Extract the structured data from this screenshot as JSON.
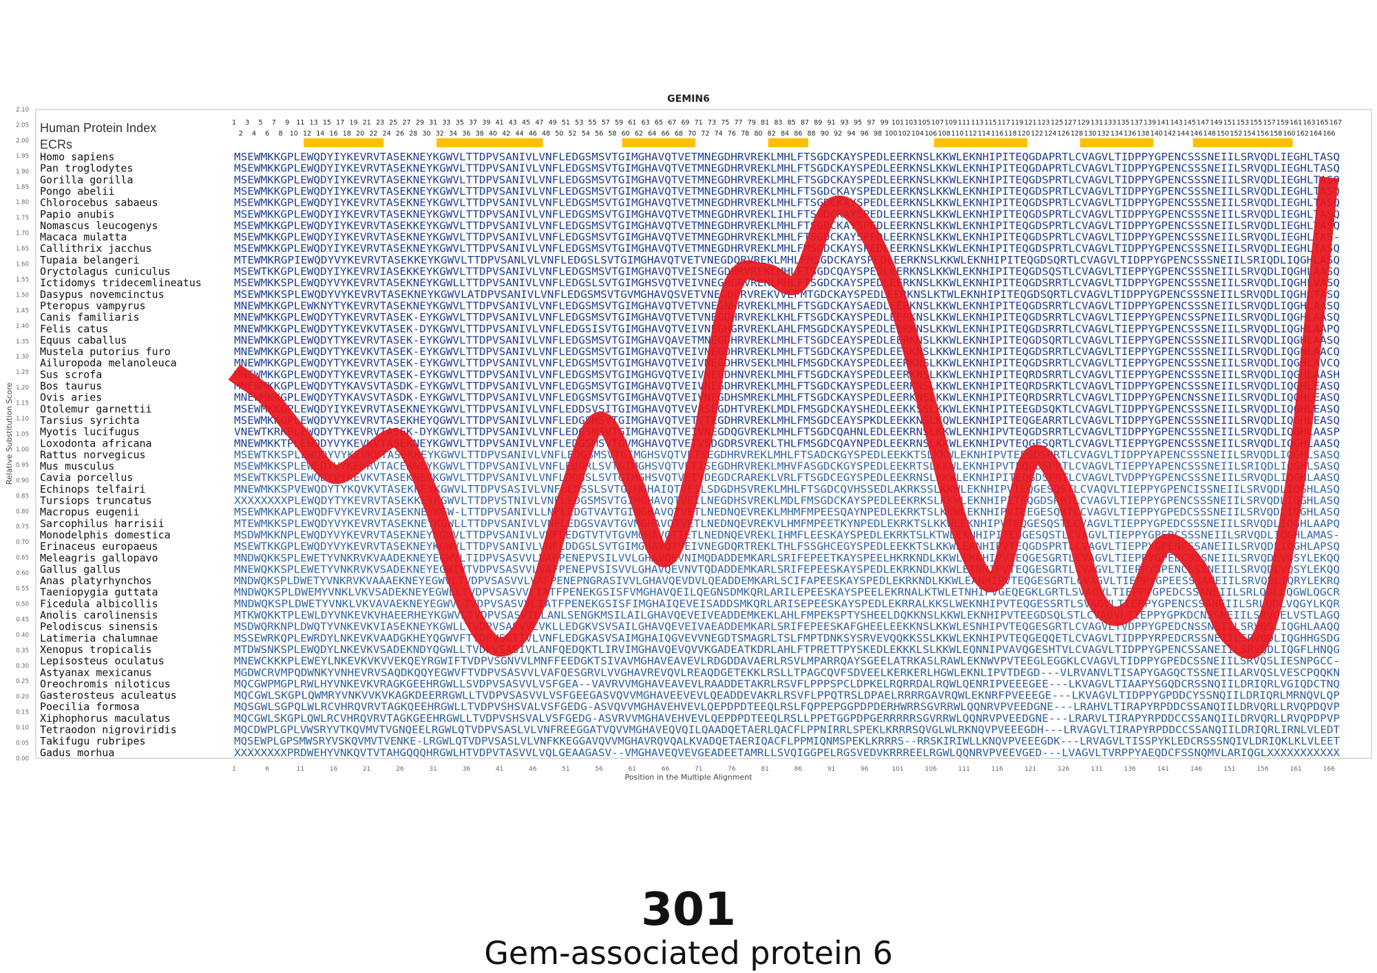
{
  "caption": {
    "number": "301",
    "protein_name": "Gem-associated protein 6"
  },
  "chart_data": {
    "type": "line",
    "title": "GEMIN6",
    "xlabel": "Position in the Multiple Alignment",
    "ylabel": "Relative Substitution Score",
    "ylim": [
      0,
      2.1
    ],
    "xlim": [
      1,
      167
    ],
    "grid": false,
    "y_ticks": [
      "0.00",
      "0.05",
      "0.10",
      "0.15",
      "0.20",
      "0.25",
      "0.30",
      "0.35",
      "0.40",
      "0.45",
      "0.50",
      "0.55",
      "0.60",
      "0.65",
      "0.70",
      "0.75",
      "0.80",
      "0.85",
      "0.90",
      "0.95",
      "1.00",
      "1.05",
      "1.10",
      "1.15",
      "1.20",
      "1.25",
      "1.30",
      "1.35",
      "1.40",
      "1.45",
      "1.50",
      "1.55",
      "1.60",
      "1.65",
      "1.70",
      "1.75",
      "1.80",
      "1.85",
      "1.90",
      "1.95",
      "2.00",
      "2.05",
      "2.10"
    ],
    "x_ticks": [
      1,
      6,
      11,
      16,
      21,
      26,
      31,
      36,
      41,
      46,
      51,
      56,
      61,
      66,
      71,
      76,
      81,
      86,
      91,
      96,
      101,
      106,
      111,
      116,
      121,
      126,
      131,
      136,
      141,
      146,
      151,
      156,
      161,
      166
    ],
    "index_label": "Human Protein Index",
    "ecr_label": "ECRs",
    "human_index_row1": [
      "1",
      "3",
      "5",
      "7",
      "9",
      "11",
      "13",
      "15",
      "17",
      "19",
      "21",
      "23",
      "25",
      "27",
      "29",
      "31",
      "33",
      "35",
      "37",
      "39",
      "41",
      "43",
      "45",
      "47",
      "49",
      "51",
      "53",
      "55",
      "57",
      "59",
      "61",
      "63",
      "65",
      "67",
      "69",
      "71",
      "73",
      "75",
      "77",
      "79",
      "81",
      "83",
      "85",
      "87",
      "89",
      "91",
      "93",
      "95",
      "97",
      "99",
      "101",
      "103",
      "105",
      "107",
      "109",
      "111",
      "113",
      "115",
      "117",
      "119",
      "121",
      "123",
      "125",
      "127",
      "129",
      "131",
      "133",
      "135",
      "137",
      "139",
      "141",
      "143",
      "145",
      "147",
      "149",
      "151",
      "153",
      "155",
      "157",
      "159",
      "161",
      "163",
      "165",
      "167"
    ],
    "human_index_row2": [
      "2",
      "4",
      "6",
      "8",
      "10",
      "12",
      "14",
      "16",
      "18",
      "20",
      "22",
      "24",
      "26",
      "28",
      "30",
      "32",
      "34",
      "36",
      "38",
      "40",
      "42",
      "44",
      "46",
      "48",
      "50",
      "52",
      "54",
      "56",
      "58",
      "60",
      "62",
      "64",
      "66",
      "68",
      "70",
      "72",
      "74",
      "76",
      "78",
      "80",
      "82",
      "84",
      "86",
      "88",
      "90",
      "92",
      "94",
      "96",
      "98",
      "100",
      "102",
      "104",
      "106",
      "108",
      "110",
      "112",
      "114",
      "116",
      "118",
      "120",
      "122",
      "124",
      "126",
      "128",
      "130",
      "132",
      "134",
      "136",
      "138",
      "140",
      "142",
      "144",
      "146",
      "148",
      "150",
      "152",
      "154",
      "156",
      "158",
      "160",
      "162",
      "164",
      "166"
    ],
    "ecrs": [
      [
        12,
        23
      ],
      [
        32,
        47
      ],
      [
        60,
        70
      ],
      [
        82,
        87
      ],
      [
        107,
        120
      ],
      [
        129,
        139
      ],
      [
        146,
        160
      ]
    ],
    "ecr_color": "#ffc000",
    "line_color": "#e8141b",
    "series": [
      {
        "x": [
          1,
          6,
          11,
          16,
          21,
          26,
          31,
          36,
          41,
          46,
          51,
          56,
          61,
          66,
          71,
          76,
          81,
          86,
          91,
          96,
          101,
          106,
          111,
          116,
          121,
          126,
          131,
          136,
          141,
          146,
          151,
          156,
          161,
          166
        ],
        "y": [
          1.25,
          1.17,
          1.04,
          0.92,
          0.98,
          1.03,
          0.82,
          0.5,
          0.36,
          0.48,
          0.83,
          1.09,
          0.9,
          0.65,
          0.98,
          1.52,
          1.57,
          1.54,
          1.78,
          1.72,
          1.48,
          1.1,
          0.71,
          0.58,
          0.97,
          0.86,
          0.51,
          0.48,
          0.69,
          0.62,
          0.4,
          0.4,
          0.91,
          1.88
        ]
      }
    ],
    "species": [
      "Homo sapiens",
      "Pan troglodytes",
      "Gorilla gorilla",
      "Pongo abelii",
      "Chlorocebus sabaeus",
      "Papio anubis",
      "Nomascus leucogenys",
      "Macaca mulatta",
      "Callithrix jacchus",
      "Tupaia belangeri",
      "Oryctolagus cuniculus",
      "Ictidomys tridecemlineatus",
      "Dasypus novemcinctus",
      "Pteropus vampyrus",
      "Canis familiaris",
      "Felis catus",
      "Equus caballus",
      "Mustela putorius furo",
      "Ailuropoda melanoleuca",
      "Sus scrofa",
      "Bos taurus",
      "Ovis aries",
      "Otolemur garnettii",
      "Tarsius syrichta",
      "Myotis lucifugus",
      "Loxodonta africana",
      "Rattus norvegicus",
      "Mus musculus",
      "Cavia porcellus",
      "Echinops telfairi",
      "Tursiops truncatus",
      "Macropus eugenii",
      "Sarcophilus harrisii",
      "Monodelphis domestica",
      "Erinaceus europaeus",
      "Meleagris gallopavo",
      "Gallus gallus",
      "Anas platyrhynchos",
      "Taeniopygia guttata",
      "Ficedula albicollis",
      "Anolis carolinensis",
      "Pelodiscus sinensis",
      "Latimeria chalumnae",
      "Xenopus tropicalis",
      "Lepisosteus oculatus",
      "Astyanax mexicanus",
      "Oreochromis niloticus",
      "Gasterosteus aculeatus",
      "Poecilia formosa",
      "Xiphophorus maculatus",
      "Tetraodon nigroviridis",
      "Takifugu rubripes",
      "Gadus morhua"
    ],
    "sequences": [
      "MSEWMKKGPLEWQDYIYKEVRVTASEKNEYKGWVLTTDPVSANIVLVNFLEDGSMSVTGIMGHAVQTVETMNEGDHRVREKLMHLFTSGDCKAYSPEDLEERKNSLKKWLEKNHIPITEQGDAPRTLCVAGVLTIDPPYGPENCSSSNEIILSRVQDLIEGHLTASQ",
      "MSEWMKKGPLEWQDYIYKEVRVTASEKNEYKGWVLTTDPVSANIVLVNFLEDGSMSVTGIMGHAVQTVETMNEGDHRVREKLMHLFTSGDCKAYSPEDLEERKNSLKKWLEKNHIPITEQGDAPRTLCVAGVLTIDPPYGPENCSSSNEIILSRVQDLIEGHLTASQ",
      "MSEWMKKGPLEWQDYIYKEVRVTASEKNEYKGWVLTTDPVSANIVLVNFLEDGSMSVTGIMGHAVQTVETMNEGDHRVREKLMHLFTSGDCKAYSPEDLEERKNSLKKWLEKNHIPITEQGDSPRTLCVAGVLTIDPPYGPENCSSSNEIILSRVQDLIEGHLTASQ",
      "MSEWMKKGPLEWQDYIYKEVRVTASEKNEYKGWVLTTDPVSANIVLVNFLEDGSMSVTGIMGHAVQTVETMNEGDHRVREKLMHLFTSGDCKAYSPEDLEERKNSLKKWLEKNHIPITEQGDSPRTLCVAGVLTIDPPYGPENCSSSNEIILSRVQDLIEGHLTASQ",
      "MSEWMKKGPLEWQDYIYKEVRVTASEKNEYKGWVLTTDPVSANIVLVNFLEDGSMSVTGIMGHAVQTVETMNEGDHRVREKLMHLFTSGDCKAYSPEDLEERKNSLKKWLEKNHIPITEQGDSPRTLCVAGVLTIDPPYGPENCSSSNEIILSRVQDLIEGHLTASQ",
      "MSEWMKKGPLEWQDYIYKEVRVTASEKNEYKGWVLTTDPVSANIVLVNFLEDGSMSVTGIMGHAVQTVETMNEGDHRVREKLIHLFTSGDCKAYSPEDLEERKNSLKKWLEKNHIPITEQGDSPRTLCVAGVLTIDPPYGPENCSSSNEIILSRVQDLIEGHLTASQ",
      "MSEWMKKGPLEWQDYIYKEVRVTASEKKEYKGWVLTTDPVSANIVLVNFLEDGSMSVTGIMGHAVQTVETMNEGDHRVREKLMHLFTSGDCKAYSPEDLEERKNSLKKWLEKNHIPITEQGDSPRTLCVAGVLTIDPPYGPENCSSSNEIILSRVQDLIEGHLTASQ",
      "MSEWMKKGPLEWQDYIYKEVRVTASEKNEYKGWVLTTDPVSANIVLVNFLEDGSMSVTGIMGHAVQTVETMNEGDHRVREKLMHLFTSGDCKAYSPEDLEERKNSLKKWLEKNHIPITEQGDSPRTLCVAGVLTIDPPYGPENCSSSNEIILSRVQDLIEGHLTAS-",
      "MSEWMKKGPLEWQDYIYKEVRVTASEKNEYKGWVLTTDPVSANIVLVNFLEDGSMSVTGIMGHAVQTVETMNEGDHRVREKLMHLFMSGDCKAYSPEDLEERKNSLKKWLEKNHIPITEQGDSPRTLCVAGVLTIDPPYGPENCSSSNEIILSRVQDLIEGHLTASQ",
      "MTEWMKRGPIEWQDYVYKEVRVTASEKKEYKGWVLTTDPVSANLVLVNFLEDGSLSVTGIMGHAVQTVETVNEGDQRVREKLMHLFMSGDCKAYSPEDLEERKNSLKKWLEKNHIPITEQGDSQRTLCVAGVLTIDPPYGPENCSSSNEIILSRIQDLIQGHLASQ",
      "MSEWTKKGPLEWQDYIYKEVRVIASEKKEYKGWVLTTDPVSANIVLVNFLEDGSMSVTGIMGHAVQTVEISNEGDHRVREKLMHLFTSGDCQAYSPEDLEERKNSLKKWLEKNHIPITEQGDSQSTLCVAGVLTIEPPYGPENCSSSNEIILSRVQDLIQGHLAASQ",
      "MSEWMKKSPLEWQDYVYKEVRVTASEKNEYKGWLLTTDPVSANIVLVNFLEDGSLSVTGIMGHSVQTVEIVNEGHGRVREKLMHLFTSGDCKAYSPEDLEERKNSLKKWLEKNHIPITEQGDSRRTLCVAGVLTIDPPYGPENCSSSNEIILSRVQDLIQGHLVASQ",
      "MSEWMKKSPLEWQDYVYKEVRVTASEKNEYKGWVLATDPVSANIVLVNFLEDGSMSVTGVMGHAVQSVETVNEGDQRVREKVVLFMTGDCKAYSPEDLEERKNSLKTWLEKNHIPITEQGDSQRTLCVAGVLTIDPPYGPENCSSSNEIILSRVQDLIQGHLTASQ",
      "MNEWMKKGPLEWKNYTYKEVRVTASEKNEYKGWVLTTDPVSANIVLVNFLEDGSMSVTGIMGHAVQTVETVNEGNHRVREKLMHLFTSGDCKAYSAEDLEERKNSLKKWLEKNHIPITEQGDSRRTLCVAGVLTIDPPYGPENCSSSNEIILSRVQDLIQGHLAASQ",
      "MNEWMKKGPLEWQDYTYKEVRVTASEK-EYKGWVLTTDPVSANIVLVNFLEDGSMSVTGIMGHAVQTVETVNEGDHRVREKLKHLFTSGDCKAYSPEDLEERKNSLKKWLEKNHIPITEQGDSRRTLCVAGVLTIEPPYGPENCSSPNEIILSRVQDLIQGHLAASQ",
      "MNEWMKKGPLEWQDYTYKEVKVTASEK-DYKGWVLTTDPVSANIVLVNFLEDGSISVTGIMGHAVQTVEIVNEGHGRVREKLAHLFMSGDCKAYSPEDLEERKNSLKKWLEKNHIPITEQGDSRRTLCVAGVLTIEPPYGPENCSSSNEIILSRVQDLIQGHLAAPQ",
      "MNEWMKKGPLEWQDYTYKEVRVTASEK-EYKGWVLTTDPVSANIVLVNFLEDGSMSVTGIMGHAVQAVETMNEGDHRVREKLMHLFTSGDCEAYSPEDLEERKNSLKKWLEKNHIPITEQGDSQRTLCVAGVLTIEPPYGPENCSSSNEIILSRVQDLIQGHLAASQ",
      "MNEWMKKGPLEWQDYTYKEVKVTASEK-EYKGWVLTTDPVSANIVLVNFLEDGSMSVTGIMGHAVQTVEIVNEGDHRVREKLMHLFTSGDCKAYSPEDLEERKNSLKKWLEKNHIPITEQGDSRRTLCVAGVLTIEPPYGPENCSSSNEIILSRVQDLIQGHLAACQ",
      "MNEWMKKGPLEWQDYTYKEVRVTASEK-EYKGWVLTTDPVSANIVLVNFLEDGSMSVTGIMGHAVQTVEIVNEGDHRVSEKLMHLFMSGDCKAYSPEDLEERKNSLKKWLEKNHIPITEQGDSRRTLCVAGVLTIEPPYGPENCSSSNEIILSRVQDLIQGHLAVCQ",
      "MNEWMKKGPLEWQDYTYKEVRVTASEK-EYKGWVLTTDPVSANIVLVNFLEDGSMSVTGIMGHGVQTVEIVNEGDHNVREKLMHLFTSGDCKAYSPEDLEERKNSLKKWLEKNHIPITEQRDSRRTLCVAGVLTIEPPYGPENCSSSNEIILSRVQDLIQGHLAASH",
      "MNEWMKKGPLEWQDYTYKAVSVTASDK-EYKGWVLTTDPVSANIVLVNFLEDGSMSVTGIMGHAVQTVEIVNEGDHRVREKLMHLFTSGDCKAYSPEDLEERKNSLKKWLEKNHIPITEQRDSRKTLCVAGVLTIDPPYGPENCSSSNEIILSRVQDLIQGHLEASQ",
      "MNEWMKKGPLEWQDYTYKAVSVTASDK-EYKGWVLTTDPVSANIVLVNFLEDGSMSVTGIMGHAVQTVEIVNEGDHSMREKLMHLFTSGDCKAYSPEDLEERKNSLKKWLEKNHIPITEQRDSRRTLCVAGVLTIDPPYGPENCNSSNEIILSRVQDLIQGHLEASQ",
      "MSEWMKKGPLEWQDYIYKEVRVTASEKNEYKGWVLTTDPVSANIVLVNFLEDDSVSITGIMGHAVQTVEVASEGDHTVREKLMDLFMSGDCKAYSHEDLEEKKSSLKKWLEKNHIPITEEGDSQKTLCVAGVLTIDPPYGPENCSSSNEIILSRVQDLIQGHLEASQ",
      "MSEWMKKGPLEWQDYVYKEVRVTASEKHEYQGWVLTTDPVSANIVLVNFLEDGSMSVTGIMGHAVQTVETVTEGDHRVREKLMHLFMSGDCEAYSPKDLEEKKNSLKQWLEKNHIPITEQGEARRTLCVAGVLTIDPPYGPENCSSSNEIILSRVQDLIQGHLEASQ",
      "VNEWTKRKPLEWQDYTYKEVRVTASEK-DYKGWVLTTDPVSANIVLVNFLEDGSMSVTGIMGHAVQTVEIVNEGDQGVREKLMHLFTSGDCQAHNLEDLEEKRNSLKKWLEKNHIPVTEQGDSRRTLCVAGVLTIDPPYGPENCSSSNEIILSRVQDLIQGHLAASP",
      "MNEWMKKTPLEWQDYVYKEVKVTASEKNEYKGWVLTTDPVSANIVLVNFLEDGSMSVTGVMGHAVQTVETVSDGDRSVREKLTHLFMSGDCQAYNPEDLEEKRNSLKKWLEKNHIPVTEQGESQRTLCVAGVLTIEPPYGPENCSSSNEIILSRVQDLIQGHLAASQ",
      "MSEWTKKSPLEWQDYVYKEVKVTASEKNEYKGWVLTTDPVSANIVLVNFLEDGSMSVTGIMGHSVQTVETSEGDHRVREKLMHLFTSADCKGYSPEDLEEKKTSLKKWLEKNHIPVTEEGDSPRTLCVAGVLTIDPPYAPENCSSSNEIILSRVQDLIQGHLSASQ",
      "MSEWMKKSPLEWEDYVYKEVRVTACEKNEYKGWVLTTDPVSANIVLVNFLEDGRLSVTGIMGHSVQTVETISEGDHRVREKLMHVFASGDCKGYSPEDLEEKRTSLKKWLEKNHIPVTEQGDSPRTLCVAGVLTIEPPYAPENCSSSNEIILSRIQDLIQGHLSASQ",
      "MSEWTKKSPLEWQDYVYKEVKVTASEKNEYKGWVLTTDPVSANIVLVNFLDDGSLSVTGIMGHSVQTVEIVDEGDCRAREKLVRLFTSGDCEGYSPEDLEEKRNSLKKWLEKNHIPITEQGDSPRTLCVAGVLTVDPPYGPENCSSSNEIILSRVQDLIQGHLAASQ",
      "MNEWMKKSPVEWQDYTYKQVKVTASEKKEYKGWVLTTDPVSASIVLVNFLEDSSLSVTGIMGHAIQTVETLSDGDHSVREKLMHLFTSGDCQVHSSEDLAKRKSSLKKWLEKNHIPVTEQGESQSTLCVAQVLTIEPPYGPENCISSNEIILSRVQDLIQGHLASQ",
      "XXXXXXXXPLEWQDYTYKEVRVTASEKKEYKGWVLTTDPVSTNIVLVNFLEDGSMSVTGIMGHAVQTVEILNEGDHSVREKLMDLFMSGDCKAYSPEDLEEKRKSLKKWLEKNHIPITEQGDSRRTLCVAGVLTIEPPYGPENCSSSNEIILSRVQDLIQGHLASQ",
      "MSEWMKKAPLEWQDFVYKEVRVIASEKNEYKGW-LTTDPVSANIVLLNFLEDGTVAVTGIMGHAVQTVETLNEDNQEVREKLMHMFMPEESQAYNPEDLEKRKTSLKKWLEKNHIPVTEEGESQRTLCVAGVLTIEPPYGPEDCSSSNEIILSRVQDLIQGHLASQ",
      "MTEWMKKSPLEWQDYVYKEVRVTASEKNEYKGWLLTTDPVSANIVLVNFLEDGSVAVTGVMGHAVQTVETLNEDNQEVREKVLHMFMPEETKYNPEDLEKRKTSLKKWLEKNHIPVTEQGESQSTLCVAGVLTIEPPYGPEDCSSSNEIILSRVQDLIQGHLAAPQ",
      "MSDWMKKNPLEWQDYVYKEVRVTASEKNEYKGWVLTTDPVSANIVLVNFLEDGTVTVTGVMGHAVQTIETLNEDNQEVREKLIHMFLEESKAYSPEDLEKRKTSLKTWLEKNHIPITEQGESQSTLCVAGVLTIEPPYGPEDCSSSNEIILSRVQDLIQGHLAMAS-",
      "MSEWTKKGPLEWQDYVYKEVRVTASEKNEYKGWVLTTDPVSANIVLVNFLDDGSLSVTGIMGHAVQTVEIVNEGDQRTREKLTHLFSSGHCEGYSPEDLEEKKTSLKKWLEKNHIPVTEQGDSPRTLCVAGVLTIEPPYGPENCSSANEIILSRVQDLIQGHLAPSQ",
      "MNDWQKKSPLEWETYVNKRVKVAADEKNEYEGWVLTIDPVSASVVLVAFPENEPVSILVVLGHAVQEVNIMQDADDEMKARLSRIFEPEETKAYSPEELHKRKNDLKKWLEKNHIPVTEQGESGRTLCVAGVLTIEPPYGPEDCSSSNEIILSRVQDLVQSYLEKQQ",
      "MNEWQKKSPLEWETYVNKRVKVSADEKNEYEGWIVTVDPVSASVVLVAFPENEPVSISVVLGHAVQEVNVTQDADDEMKARLSRIFEPEESKAYSPEDLEKRKNDLKKWLETNHIPVTEQGESGRTLCVAGVLTIEPPYGPENCSSSNEIILSRVQDLVQSYLEKQQ",
      "MNDWQKSPLDWETYVNKRVKVAAAEKNEYEGWVLTVDPVSASVVLVAFPENEPNGRASIVVLGHAVQEVDVLQEADDEMKARLSCIFAPEESKAYSPEDLEKRKNDLKKWLEANHIPVTEQGESGRTLCVAGVLTIEPPYGPEESSSANEIILSRVQDLIQRYLEKRQ",
      "MNDWQKSPLDWEMYVNKLVKVSADEKNEYEGWLLTVDPVSASVVLIATFPENEKGSISFVMGHAVQEILQEGNSDMKQRLARILEPEESKAYSPEELEKRNALKTWLETNHIPVGEQEGKLGRTLSVAGVLTIEPPYGPEDCSSANEIILSRLQDLLQGWLQGCR",
      "MNDWQKSPLDWETYVNKLVKVAVAEKNEYEGWVLTVDPVSASVVLIATFPENEKGSISFIMGHAIQEVEISADDSMKQRLARISEPEESKAYSPEDLEKRRALKKSLWEKNHIPVTEQGESSRTLSVAGVLTIEPPYGPENCSSANEIILSRLQDLVQGYLKQR",
      "MTKWQKKTPLEWLDYVNKEVKVHAEERHEYKGWVLTVDPVSASVILLANLSENGKMSILAILGHAVQEVEIVEADDEMKEKLAHLFMPEKSPTYSHEELDQKKNSLKKWLEKNHIPVTEEGDSQLSTLCVAGVLTIEPPYGPKDCNSSNEIILSRVQELVSTLAGQ",
      "MSDWQRKNPLDWQTYVNKEVKVIASEKNEYKGWLLTVDPVSASVVLVKLLEDGKVSVSAILGHAVQEVEIVAEADDEMKARLSRIFEPEESKAFGHEELEEKKNSLKKWLESNHIPVTEQGESGRTLCVAGVLTVDPPYGPEDCNSSNEIILSRVQSLIQGHLAAQQ",
      "MSSEWRKQPLEWRDYLNKEVKVAADGKHEYQGWVFTTDPVSGTIVLVNFLEDGKASVSAIMGHAIQGVEVVNEGDTSMAGRLTSLFMPTDNKSYSRVEVQQKKSSLKKWLEKNHIPVTEQGEQQETLCVAGVLTIDPPYRPEDCRSSNEIILSRVQDLIQGHHGSDG",
      "MTDWSNKSPLEWQDYLNKEVKVSADEKNDYQGWLLTVDPVSASIVLANFQEDQKTLIRVIMGHAVQEVQVVKGADEATKDRLAHLFTPRETTPYSKEDLEKKKLSLKKWLEQNNIPVAVQGESHTVLCVAGVLTIDPPYGPENCSSANEIILSRVQDLIQGFLHNQG",
      "MNEWCKKKPLEWEYLNKEVKVKVVEKQEYRGWIFTVDPVSGNVVLMNFFEEDGKTSIVAVMGHAVEAVEVLRDGDDAVAERLRSVLMPARRQAYSGEELATRKASLRAWLEKNWVPVTEEGLEGGKLCVAGVLTIDPPYGPEDCSSNEIILSRVQSLIESNPGCC-",
      "MGDWCRVMPQDWNKYVNHEVRVSAQDKQQYEGWVFTVDPVSASVVLVAFQESGRVLVVGHAVREVQVLREAQDGETEKKLRSLLTPAGCQVFSDVEELKERKERLHGWLEKNLIPVTDEGD---VLRVANVLTISAPYGAGQCTSSNEIILARVQSLVESCPQQKN",
      "MQCGWPMGPLRWLHYVNKEVKVRAGKGEEHRGWLLSVDPVSASVVLVSFGEA--VAVRVVMGHAVEAVEVLRAADDETAKRLRSVFLPPPSPCLDPKELRQRRDALRQWLQENRIPVEEEGEE---LKVAGVLTIAAPYSGQDCRSSNQIILDRIQRLVGIQDCTNQ",
      "MQCGWLSKGPLQWMRYVNKVVKVKAGKDEERRGWLLTVDPVSASVVLVSFGEEGASVQVVMGHAVEEVEVLQEADDEVAKRLRSVFLPPQTRSLDPAELRRRRGAVRQWLEKNRFPVEEEGE---LKVAGVLTIDPPYGPDDCYSSNQIILDRIQRLMRNQVLQP",
      "MQSGWLSGPQLWLRCVHRQVRVTAGKQEEHRGWLLTVDPVSHSVALVSFGEDG-ASVQVVMGHAVEHVEVLQEPDPDTEEQLRSLFQPPEPGGPDPDERHWRRSGVRRWLQQNRVPVEEDGNE---LRAHVLTIRAPYRPDDCSSANQIILDRVQRLLRVQPDQVP",
      "MQCGWLSKGPLQWLRCVHRQVRVTAGKGEEHRGWLLTVDPVSHSVALVSFGEDG-ASVRVVMGHAVEHVEVLQEPDPDTEEQLRSLLPPETGGPDPGERRRRRSGVRRWLQQNRVPVEEDGNE---LRARVLTIRAPYRPDDCCSSANQIILDRVQRLLRVQPDPVP",
      "MQCDWPLGPLVWSRYVTKQVMVTVGNQEELRGWLQTVDPVSASLVLVNFREEGGATVQVVMGHAVEQVQILQAADQETAERLQACFLPPNIRRLSPEKLKRRRSQVGLWLRKNQVPVEEEGDH---LRVAGVLTIRAPYRPDDCCSSANQIILDRIQRLIRNLVLEDT",
      "MQSEWPLGPSMWSRYVSKQVMVTVENKE-LRGWLQTVDPVSASLVLVNFKKEGGAVQVVMGHAVRQVQALKVADQETAERIQACFLPPMIQNMSPEKLKRRRS--RRSKIRIWLLKNQVPVEEEGDK---LRVAGVLTISSPYKLEDCRSSSNQIVLDRIQKLKLVLEET",
      "XXXXXXXXPRDWEHYVNKQVTVTAHGQQQHRGWLHTVDPVTASVVLVQLGEAAGASV--VMGHAVEQVEVGEADEETAMRLLSVQIGGPELRGSVEDVKRRREELRGWLQQNRVPVEEVGED---LVAGVLTVRPPYAEQDCFSSNQMVLARIQGLXXXXXXXXXXX"
    ]
  }
}
